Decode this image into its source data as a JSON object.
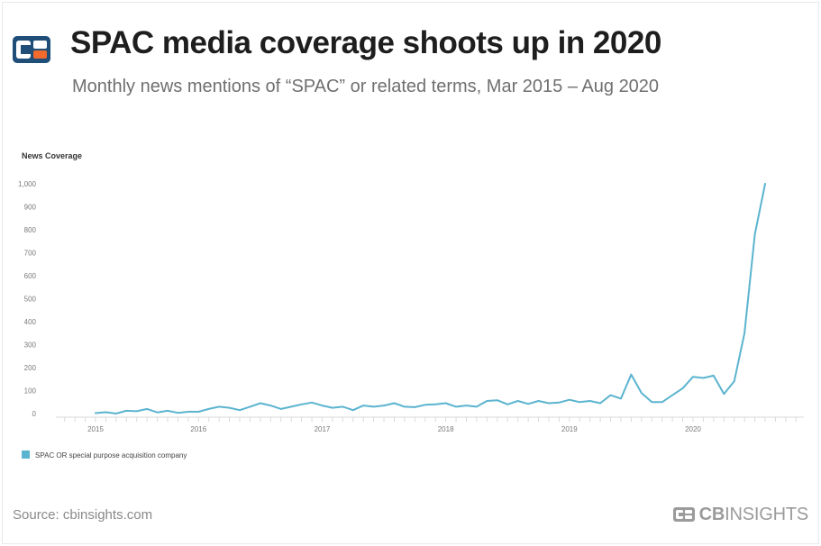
{
  "header": {
    "title": "SPAC media coverage shoots up in 2020",
    "subtitle": "Monthly news mentions of “SPAC” or related terms, Mar 2015 – Aug 2020"
  },
  "footer": {
    "source": "Source: cbinsights.com",
    "brand_bold": "CB",
    "brand_rest": "INSIGHTS"
  },
  "colors": {
    "line": "#5bb4cf",
    "logo_blue": "#1f4e79",
    "logo_orange": "#f26b2d"
  },
  "chart_data": {
    "type": "line",
    "title": "SPAC media coverage shoots up in 2020",
    "ylabel": "News Coverage",
    "xlabel": "",
    "ylim": [
      0,
      1000
    ],
    "yticks": [
      0,
      100,
      200,
      300,
      400,
      500,
      600,
      700,
      800,
      900,
      1000
    ],
    "ytick_labels": [
      "0",
      "100",
      "200",
      "300",
      "400",
      "500",
      "600",
      "700",
      "800",
      "900",
      "1,000"
    ],
    "x_start": "2015-03",
    "x_year_labels": [
      "2015",
      "2016",
      "2017",
      "2018",
      "2019",
      "2020"
    ],
    "x_year_label_months": [
      0,
      10,
      22,
      34,
      46,
      58
    ],
    "legend_position": "bottom-left",
    "series": [
      {
        "name": "SPAC OR special purpose acquisition company",
        "values": [
          2,
          6,
          0,
          12,
          10,
          20,
          5,
          12,
          3,
          8,
          8,
          20,
          30,
          25,
          15,
          30,
          45,
          35,
          20,
          30,
          40,
          48,
          35,
          25,
          30,
          15,
          35,
          30,
          35,
          45,
          30,
          28,
          38,
          40,
          45,
          30,
          35,
          30,
          55,
          58,
          40,
          55,
          42,
          55,
          45,
          48,
          60,
          50,
          55,
          45,
          80,
          65,
          170,
          90,
          50,
          50,
          80,
          110,
          160,
          155,
          165,
          85,
          140,
          350,
          780,
          1000
        ]
      }
    ]
  }
}
